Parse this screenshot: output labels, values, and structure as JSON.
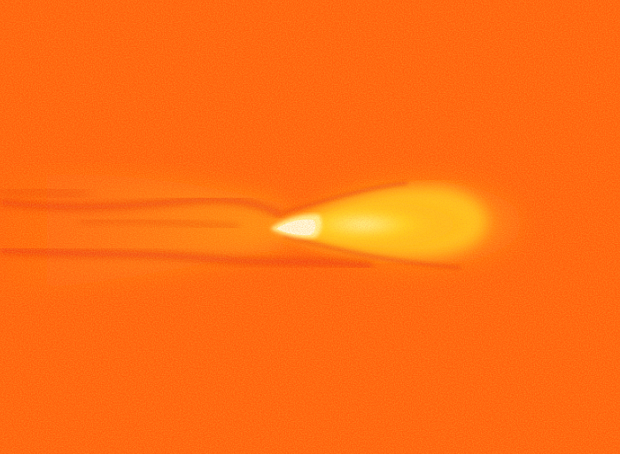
{
  "image": {
    "description_colors": {
      "background": "#ff5a0a",
      "background_speckle": "#ff7a10",
      "dark_streak": "#e8280a",
      "mid_glow": "#ff9a12",
      "bright_glow": "#ffd21e",
      "hot_core": "#fff4a0",
      "core_white": "#fffde8"
    }
  }
}
